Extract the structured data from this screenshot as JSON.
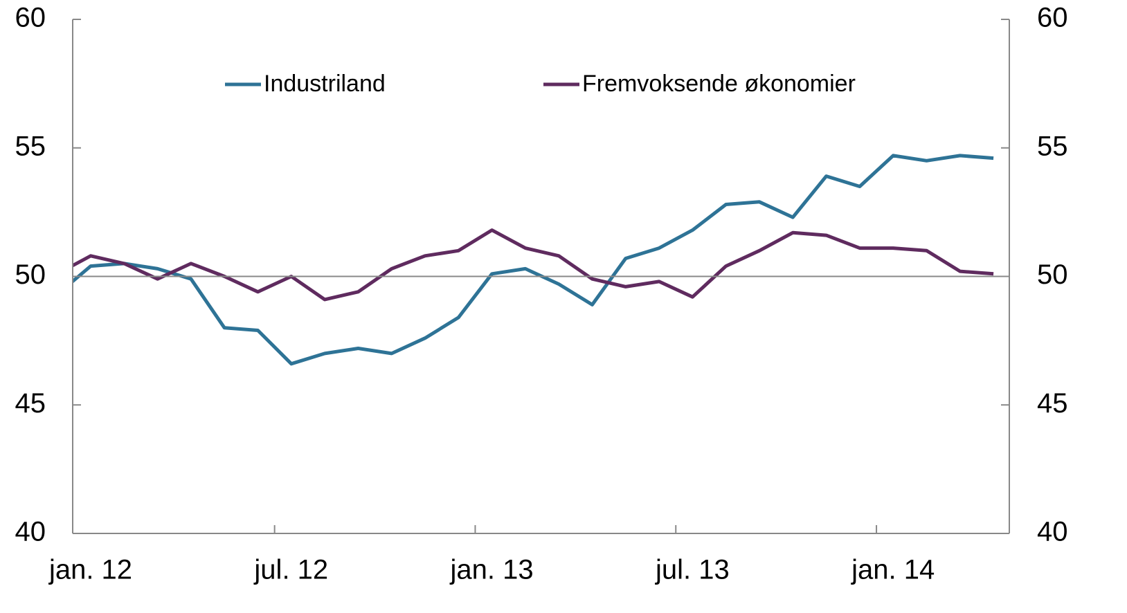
{
  "chart_data": {
    "type": "line",
    "categories": [
      null,
      "jan. 12",
      null,
      null,
      null,
      null,
      null,
      "jul. 12",
      null,
      null,
      null,
      null,
      null,
      "jan. 13",
      null,
      null,
      null,
      null,
      null,
      "jul. 13",
      null,
      null,
      null,
      null,
      null,
      "jan. 14",
      null,
      null,
      null
    ],
    "series": [
      {
        "name": "Industriland",
        "color": "#2e7396",
        "values": [
          49.3,
          50.4,
          50.5,
          50.3,
          49.9,
          48.0,
          47.9,
          46.6,
          47.0,
          47.2,
          47.0,
          47.6,
          48.4,
          50.1,
          50.3,
          49.7,
          48.9,
          50.7,
          51.1,
          51.8,
          52.8,
          52.9,
          52.3,
          53.9,
          53.5,
          54.7,
          54.5,
          54.7,
          54.6
        ]
      },
      {
        "name": "Fremvoksende økonomier",
        "color": "#5f2b5f",
        "values": [
          50.1,
          50.8,
          50.5,
          49.9,
          50.5,
          50.0,
          49.4,
          50.0,
          49.1,
          49.4,
          50.3,
          50.8,
          51.0,
          51.8,
          51.1,
          50.8,
          49.9,
          49.6,
          49.8,
          49.2,
          50.4,
          51.0,
          51.7,
          51.6,
          51.1,
          51.1,
          51.0,
          50.2,
          50.1
        ]
      }
    ],
    "ylim": [
      40,
      60
    ],
    "yticks": [
      40,
      45,
      50,
      55,
      60
    ],
    "reference_line": 50,
    "legend": "top"
  }
}
